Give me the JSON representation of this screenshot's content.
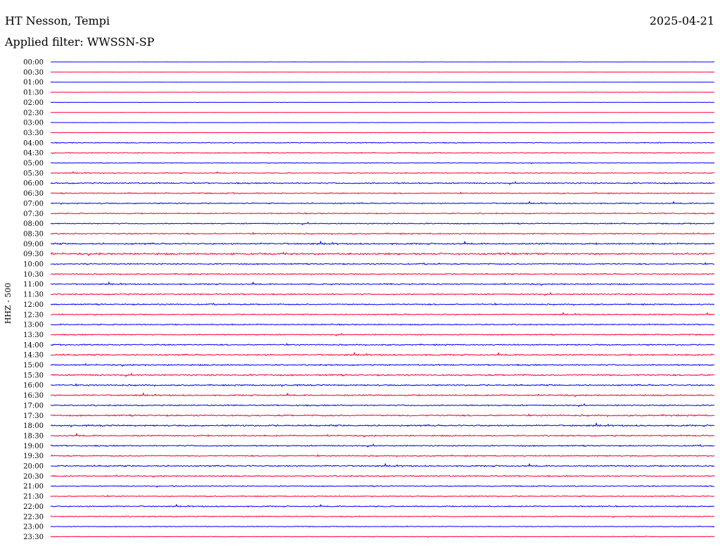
{
  "header": {
    "title": "HT Nesson, Tempi",
    "date": "2025-04-21",
    "filter_line": "Applied filter: WWSSN-SP"
  },
  "chart_data": {
    "type": "line",
    "title": "HT Nesson, Tempi",
    "ylabel": "HHZ - 500",
    "grid": false,
    "trace_colors": [
      "#0000ff",
      "#ff0033"
    ],
    "rows": [
      {
        "label": "00:00",
        "activity": 0.05
      },
      {
        "label": "00:30",
        "activity": 0.03
      },
      {
        "label": "01:00",
        "activity": 0.08
      },
      {
        "label": "01:30",
        "activity": 0.12
      },
      {
        "label": "02:00",
        "activity": 0.1
      },
      {
        "label": "02:30",
        "activity": 0.1
      },
      {
        "label": "03:00",
        "activity": 0.1
      },
      {
        "label": "03:30",
        "activity": 0.15
      },
      {
        "label": "04:00",
        "activity": 0.35
      },
      {
        "label": "04:30",
        "activity": 0.35
      },
      {
        "label": "05:00",
        "activity": 0.3
      },
      {
        "label": "05:30",
        "activity": 0.35
      },
      {
        "label": "06:00",
        "activity": 0.5
      },
      {
        "label": "06:30",
        "activity": 0.45
      },
      {
        "label": "07:00",
        "activity": 0.45
      },
      {
        "label": "07:30",
        "activity": 0.45
      },
      {
        "label": "08:00",
        "activity": 0.45
      },
      {
        "label": "08:30",
        "activity": 0.5
      },
      {
        "label": "09:00",
        "activity": 0.6
      },
      {
        "label": "09:30",
        "activity": 0.7
      },
      {
        "label": "10:00",
        "activity": 0.5
      },
      {
        "label": "10:30",
        "activity": 0.5
      },
      {
        "label": "11:00",
        "activity": 0.5
      },
      {
        "label": "11:30",
        "activity": 0.5
      },
      {
        "label": "12:00",
        "activity": 0.5
      },
      {
        "label": "12:30",
        "activity": 0.45
      },
      {
        "label": "13:00",
        "activity": 0.45
      },
      {
        "label": "13:30",
        "activity": 0.45
      },
      {
        "label": "14:00",
        "activity": 0.5
      },
      {
        "label": "14:30",
        "activity": 0.55
      },
      {
        "label": "15:00",
        "activity": 0.55
      },
      {
        "label": "15:30",
        "activity": 0.6
      },
      {
        "label": "16:00",
        "activity": 0.55
      },
      {
        "label": "16:30",
        "activity": 0.55
      },
      {
        "label": "17:00",
        "activity": 0.5
      },
      {
        "label": "17:30",
        "activity": 0.6
      },
      {
        "label": "18:00",
        "activity": 0.6
      },
      {
        "label": "18:30",
        "activity": 0.55
      },
      {
        "label": "19:00",
        "activity": 0.5
      },
      {
        "label": "19:30",
        "activity": 0.5
      },
      {
        "label": "20:00",
        "activity": 0.55
      },
      {
        "label": "20:30",
        "activity": 0.5
      },
      {
        "label": "21:00",
        "activity": 0.4
      },
      {
        "label": "21:30",
        "activity": 0.4
      },
      {
        "label": "22:00",
        "activity": 0.45
      },
      {
        "label": "22:30",
        "activity": 0.4
      },
      {
        "label": "23:00",
        "activity": 0.3
      },
      {
        "label": "23:30",
        "activity": 0.25
      }
    ]
  }
}
